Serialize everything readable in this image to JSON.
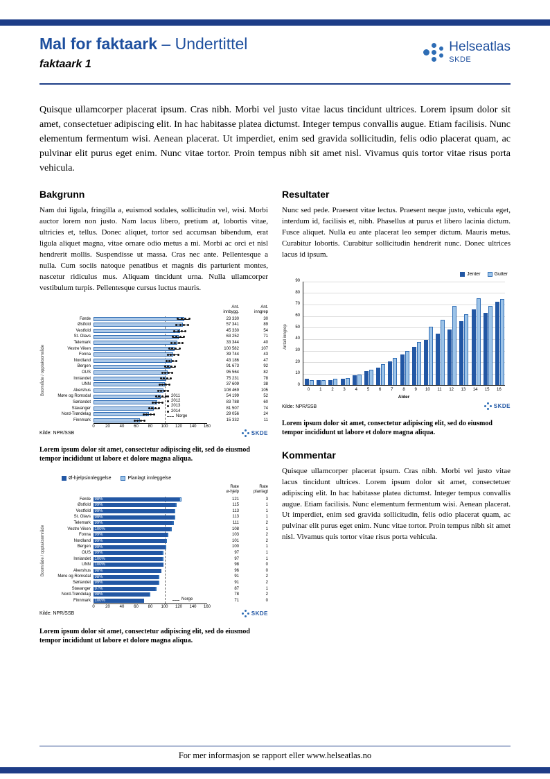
{
  "header": {
    "title": "Mal for faktaark",
    "subtitle": "– Undertittel",
    "doc_label": "faktaark 1",
    "brand": {
      "name": "Helseatlas",
      "unit": "SKDE"
    }
  },
  "intro": "Quisque ullamcorper placerat ipsum. Cras nibh. Morbi vel justo vitae lacus tincidunt ultrices. Lorem ipsum dolor sit amet, consectetuer adipiscing elit. In hac habitasse platea dictumst. Integer tempus convallis augue. Etiam facilisis. Nunc elementum fermentum wisi. Aenean placerat. Ut imperdiet, enim sed gravida sollicitudin, felis odio placerat quam, ac pulvinar elit purus eget enim. Nunc vitae tortor. Proin tempus nibh sit amet nisl. Vivamus quis tortor vitae risus porta vehicula.",
  "sections": {
    "bakgrunn": {
      "title": "Bakgrunn",
      "body": "Nam dui ligula, fringilla a, euismod sodales, sollicitudin vel, wisi. Morbi auctor lorem non justo. Nam lacus libero, pretium at, lobortis vitae, ultricies et, tellus. Donec aliquet, tortor sed accumsan bibendum, erat ligula aliquet magna, vitae ornare odio metus a mi. Morbi ac orci et nisl hendrerit mollis. Suspendisse ut massa. Cras nec ante. Pellentesque a nulla. Cum sociis natoque penatibus et magnis dis parturient montes, nascetur ridiculus mus. Aliquam tincidunt urna. Nulla ullamcorper vestibulum turpis. Pellentesque cursus luctus mauris."
    },
    "resultater": {
      "title": "Resultater",
      "body": "Nunc sed pede. Praesent vitae lectus. Praesent neque justo, vehicula eget, interdum id, facilisis et, nibh. Phasellus at purus et libero lacinia dictum. Fusce aliquet. Nulla eu ante placerat leo semper dictum. Mauris metus. Curabitur lobortis. Curabitur sollicitudin hendrerit nunc. Donec ultrices lacus id ipsum."
    },
    "kommentar": {
      "title": "Kommentar",
      "body": "Quisque ullamcorper placerat ipsum. Cras nibh. Morbi vel justo vitae lacus tincidunt ultrices. Lorem ipsum dolor sit amet, consectetuer adipiscing elit. In hac habitasse platea dictumst. Integer tempus convallis augue. Etiam facilisis. Nunc elementum fermentum wisi. Aenean placerat. Ut imperdiet, enim sed gravida sollicitudin, felis odio placerat quam, ac pulvinar elit purus eget enim. Nunc vitae tortor. Proin tempus nibh sit amet nisl. Vivamus quis tortor vitae risus porta vehicula."
    }
  },
  "captions": {
    "c1": "Lorem ipsum dolor sit amet, consectetur adipiscing elit, sed do eiusmod tempor incididunt ut labore et dolore magna aliqua.",
    "c2": "Lorem ipsum dolor sit amet, consectetur adipiscing elit, sed do eiusmod tempor incididunt ut labore et dolore magna aliqua.",
    "c3": "Lorem ipsum dolor sit amet, consectetur adipiscing elit, sed do eiusmod tempor incididunt ut labore et dolore magna aliqua."
  },
  "source_label": "Kilde: NPR/SSB",
  "skde_label": "SKDE",
  "footer": {
    "text": "For mer informasjon se rapport eller www.helseatlas.no"
  },
  "colors": {
    "dark_blue": "#1d3d87",
    "brand_blue": "#1e4f9e",
    "bar_light": "#adc9e8",
    "bar_dark": "#2257a4",
    "bar_pale": "#9cc3e8"
  },
  "chart_data": [
    {
      "type": "bar",
      "orientation": "horizontal",
      "id": "rate-by-region",
      "ylabel": "Boområde / opptaksområde",
      "xlim": [
        0,
        160
      ],
      "xtick_step": 20,
      "norge_line": 100,
      "norge_label": "Norge",
      "legend_years": [
        "2011",
        "2012",
        "2013",
        "2014"
      ],
      "col_headers": [
        "Ant.\ninnbygg.",
        "Ant.\ninngrep"
      ],
      "rows": [
        {
          "name": "Førde",
          "rate": 128,
          "points": [
            118,
            124,
            129,
            135
          ],
          "innbygg": "23 330",
          "inngrep": "30"
        },
        {
          "name": "Østfold",
          "rate": 126,
          "points": [
            117,
            122,
            127,
            133
          ],
          "innbygg": "57 341",
          "inngrep": "89"
        },
        {
          "name": "Vestfold",
          "rate": 122,
          "points": [
            114,
            119,
            124,
            129
          ],
          "innbygg": "45 330",
          "inngrep": "54"
        },
        {
          "name": "St. Olavs",
          "rate": 120,
          "points": [
            112,
            117,
            122,
            127
          ],
          "innbygg": "63 252",
          "inngrep": "71"
        },
        {
          "name": "Telemark",
          "rate": 118,
          "points": [
            110,
            115,
            120,
            125
          ],
          "innbygg": "33 344",
          "inngrep": "40"
        },
        {
          "name": "Vestre Viken",
          "rate": 114,
          "points": [
            107,
            111,
            116,
            121
          ],
          "innbygg": "100 582",
          "inngrep": "107"
        },
        {
          "name": "Fonna",
          "rate": 112,
          "points": [
            105,
            109,
            114,
            119
          ],
          "innbygg": "39 744",
          "inngrep": "43"
        },
        {
          "name": "Nordland",
          "rate": 110,
          "points": [
            103,
            107,
            112,
            117
          ],
          "innbygg": "43 186",
          "inngrep": "47"
        },
        {
          "name": "Bergen",
          "rate": 108,
          "points": [
            101,
            105,
            110,
            115
          ],
          "innbygg": "91 673",
          "inngrep": "92"
        },
        {
          "name": "OUS",
          "rate": 104,
          "points": [
            97,
            101,
            106,
            111
          ],
          "innbygg": "95 564",
          "inngrep": "82"
        },
        {
          "name": "Innlandet",
          "rate": 102,
          "points": [
            95,
            99,
            104,
            109
          ],
          "innbygg": "75 231",
          "inngrep": "78"
        },
        {
          "name": "UNN",
          "rate": 100,
          "points": [
            93,
            97,
            102,
            107
          ],
          "innbygg": "37 609",
          "inngrep": "38"
        },
        {
          "name": "Akershus",
          "rate": 98,
          "points": [
            91,
            95,
            100,
            105
          ],
          "innbygg": "108 469",
          "inngrep": "105"
        },
        {
          "name": "Møre og Romsdal",
          "rate": 95,
          "points": [
            88,
            92,
            97,
            102
          ],
          "innbygg": "54 199",
          "inngrep": "52"
        },
        {
          "name": "Sørlandet",
          "rate": 90,
          "points": [
            83,
            87,
            92,
            97
          ],
          "innbygg": "83 788",
          "inngrep": "60"
        },
        {
          "name": "Stavanger",
          "rate": 85,
          "points": [
            78,
            82,
            87,
            92
          ],
          "innbygg": "81 507",
          "inngrep": "74"
        },
        {
          "name": "Nord-Trøndelag",
          "rate": 78,
          "points": [
            71,
            75,
            80,
            85
          ],
          "innbygg": "29 056",
          "inngrep": "24"
        },
        {
          "name": "Finnmark",
          "rate": 65,
          "points": [
            58,
            62,
            67,
            72
          ],
          "innbygg": "15 332",
          "inngrep": "11"
        }
      ]
    },
    {
      "type": "bar",
      "orientation": "horizontal",
      "id": "admission-type",
      "legend": [
        "Ø-hjelpsinnleggelse",
        "Planlagt innleggelse"
      ],
      "ylabel": "Boområde / opptaksområde",
      "xlim": [
        0,
        160
      ],
      "xtick_step": 20,
      "norge_line": 100,
      "norge_label": "Norge",
      "col_headers": [
        "Rate\nø-hjelp",
        "Rate\nplanlagt"
      ],
      "rows": [
        {
          "name": "Førde",
          "pct": "98%",
          "ohjelp": 121,
          "planlagt": 3
        },
        {
          "name": "Østfold",
          "pct": "99%",
          "ohjelp": 115,
          "planlagt": 1
        },
        {
          "name": "Vestfold",
          "pct": "99%",
          "ohjelp": 113,
          "planlagt": 1
        },
        {
          "name": "St. Olavs",
          "pct": "99%",
          "ohjelp": 113,
          "planlagt": 1
        },
        {
          "name": "Telemark",
          "pct": "99%",
          "ohjelp": 111,
          "planlagt": 2
        },
        {
          "name": "Vestre Viken",
          "pct": "100%",
          "ohjelp": 108,
          "planlagt": 1
        },
        {
          "name": "Fonna",
          "pct": "99%",
          "ohjelp": 103,
          "planlagt": 2
        },
        {
          "name": "Nordland",
          "pct": "99%",
          "ohjelp": 101,
          "planlagt": 2
        },
        {
          "name": "Bergen",
          "pct": "99%",
          "ohjelp": 100,
          "planlagt": 1
        },
        {
          "name": "OUS",
          "pct": "99%",
          "ohjelp": 97,
          "planlagt": 1
        },
        {
          "name": "Innlandet",
          "pct": "100%",
          "ohjelp": 97,
          "planlagt": 1
        },
        {
          "name": "UNN",
          "pct": "100%",
          "ohjelp": 98,
          "planlagt": 0
        },
        {
          "name": "Akershus",
          "pct": "98%",
          "ohjelp": 96,
          "planlagt": 0
        },
        {
          "name": "Møre og Romsdal",
          "pct": "98%",
          "ohjelp": 91,
          "planlagt": 2
        },
        {
          "name": "Sørlandet",
          "pct": "99%",
          "ohjelp": 91,
          "planlagt": 2
        },
        {
          "name": "Stavanger",
          "pct": "97%",
          "ohjelp": 87,
          "planlagt": 1
        },
        {
          "name": "Nord-Trøndelag",
          "pct": "98%",
          "ohjelp": 78,
          "planlagt": 2
        },
        {
          "name": "Finnmark",
          "pct": "100%",
          "ohjelp": 71,
          "planlagt": 0
        }
      ]
    },
    {
      "type": "bar",
      "orientation": "vertical",
      "id": "age-distribution",
      "xlabel": "Alder",
      "ylabel": "Antall inngrep",
      "ylim": [
        0,
        90
      ],
      "ytick_step": 10,
      "categories": [
        "0",
        "1",
        "2",
        "3",
        "4",
        "5",
        "6",
        "7",
        "8",
        "9",
        "10",
        "11",
        "12",
        "13",
        "14",
        "15",
        "16"
      ],
      "series": [
        {
          "name": "Jenter",
          "color": "#2257a4",
          "values": [
            5,
            4,
            4,
            5,
            8,
            12,
            15,
            20,
            26,
            33,
            39,
            44,
            48,
            55,
            65,
            62,
            72
          ]
        },
        {
          "name": "Gutter",
          "color": "#9cc3e8",
          "values": [
            4,
            4,
            5,
            6,
            9,
            13,
            18,
            23,
            29,
            37,
            50,
            56,
            68,
            61,
            75,
            68,
            74
          ]
        }
      ]
    }
  ]
}
